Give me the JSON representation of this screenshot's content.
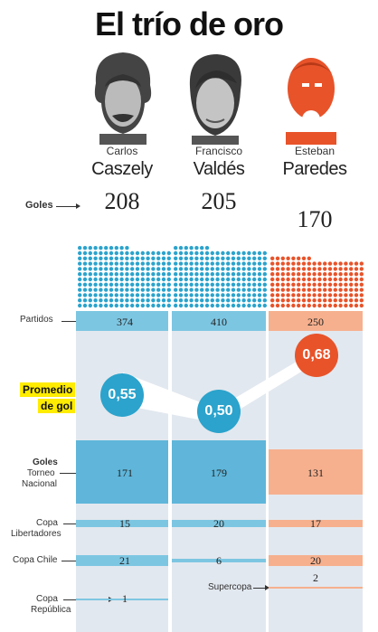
{
  "title": "El trío de oro",
  "colors": {
    "blue": "#2ba3cc",
    "blue_bar": "#7dc6e2",
    "orange": "#e8532a",
    "orange_bar": "#f6b08e",
    "col_bg": "#e2e8ef"
  },
  "players": [
    {
      "first": "Carlos",
      "last": "Caszely",
      "goles": "208",
      "dots": 208,
      "partidos": "374",
      "promedio": "0,55",
      "promedio_value": 0.55,
      "torneo": "171",
      "libertadores": "15",
      "copa_chile": "21",
      "copa_republica": "1",
      "supercopa": ""
    },
    {
      "first": "Francisco",
      "last": "Valdés",
      "goles": "205",
      "dots": 205,
      "partidos": "410",
      "promedio": "0,50",
      "promedio_value": 0.5,
      "torneo": "179",
      "libertadores": "20",
      "copa_chile": "6",
      "copa_republica": "",
      "supercopa": ""
    },
    {
      "first": "Esteban",
      "last": "Paredes",
      "goles": "170",
      "dots": 170,
      "partidos": "250",
      "promedio": "0,68",
      "promedio_value": 0.68,
      "torneo": "131",
      "libertadores": "17",
      "copa_chile": "20",
      "copa_republica": "",
      "supercopa": "2"
    }
  ],
  "labels": {
    "goles": "Goles",
    "partidos": "Partidos",
    "promedio_1": "Promedio",
    "promedio_2": "de gol",
    "goles_torneo_1": "Goles",
    "goles_torneo_2": "Torneo",
    "goles_torneo_3": "Nacional",
    "copa_lib_1": "Copa",
    "copa_lib_2": "Libertadores",
    "copa_chile": "Copa Chile",
    "copa_rep_1": "Copa",
    "copa_rep_2": "República",
    "supercopa": "Supercopa"
  }
}
